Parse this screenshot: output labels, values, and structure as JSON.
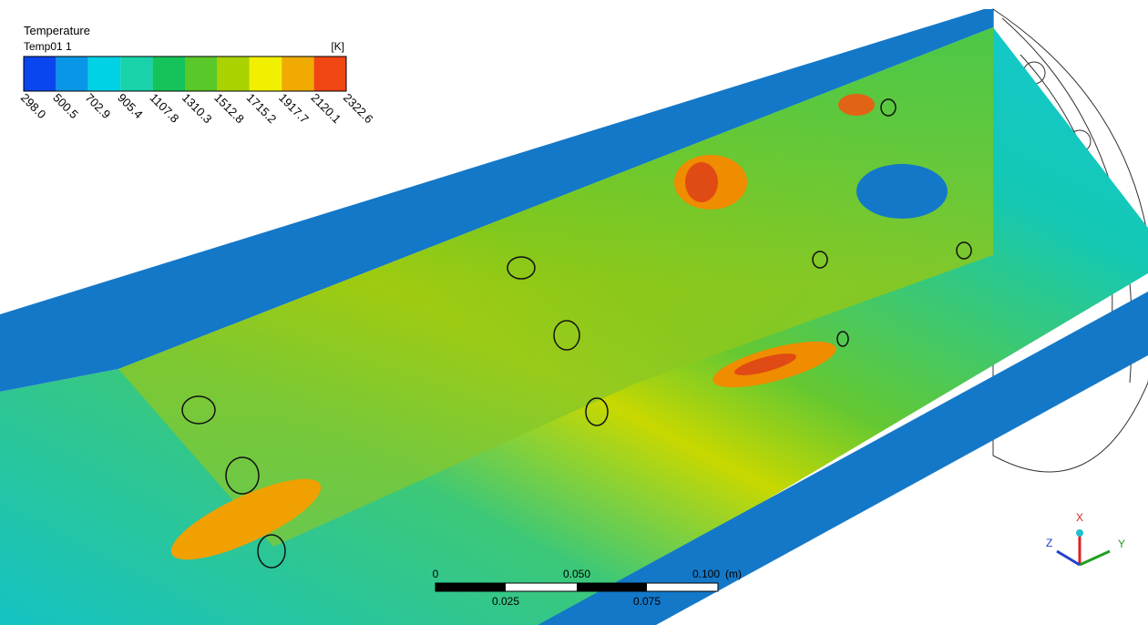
{
  "legend": {
    "title": "Temperature",
    "subtitle": "Temp01 1",
    "unit": "[K]",
    "ticks": [
      "298.0",
      "500.5",
      "702.9",
      "905.4",
      "1107.8",
      "1310.3",
      "1512.8",
      "1715.2",
      "1917.7",
      "2120.1",
      "2322.6"
    ],
    "colors": [
      "#0a46f0",
      "#0a96e6",
      "#00d2e6",
      "#18d2aa",
      "#14c35a",
      "#5ac828",
      "#aad200",
      "#f0f000",
      "#f0aa00",
      "#f04614"
    ]
  },
  "scale_bar": {
    "labels_top": [
      "0",
      "0.050",
      "0.100"
    ],
    "unit": "(m)",
    "labels_bottom": [
      "0.025",
      "0.075"
    ]
  },
  "axes": {
    "x": "X",
    "y": "Y",
    "z": "Z"
  }
}
